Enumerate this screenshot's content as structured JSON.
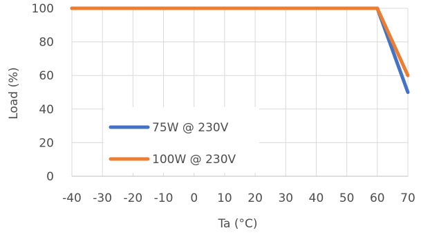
{
  "chart_data": {
    "type": "line",
    "title": "",
    "xlabel": "Ta (°C)",
    "ylabel": "Load (%)",
    "xlim": [
      -40,
      70
    ],
    "ylim": [
      0,
      100
    ],
    "x_ticks": [
      -40,
      -30,
      -20,
      -10,
      0,
      10,
      20,
      30,
      40,
      50,
      60,
      70
    ],
    "y_ticks": [
      0,
      20,
      40,
      60,
      80,
      100
    ],
    "grid": true,
    "legend_position": "lower-left",
    "series": [
      {
        "name": "75W @ 230V",
        "color": "#4472C4",
        "x": [
          -40,
          60,
          70
        ],
        "y": [
          100,
          100,
          50
        ]
      },
      {
        "name": "100W @ 230V",
        "color": "#ED7D31",
        "x": [
          -40,
          60,
          70
        ],
        "y": [
          100,
          100,
          60
        ]
      }
    ]
  }
}
